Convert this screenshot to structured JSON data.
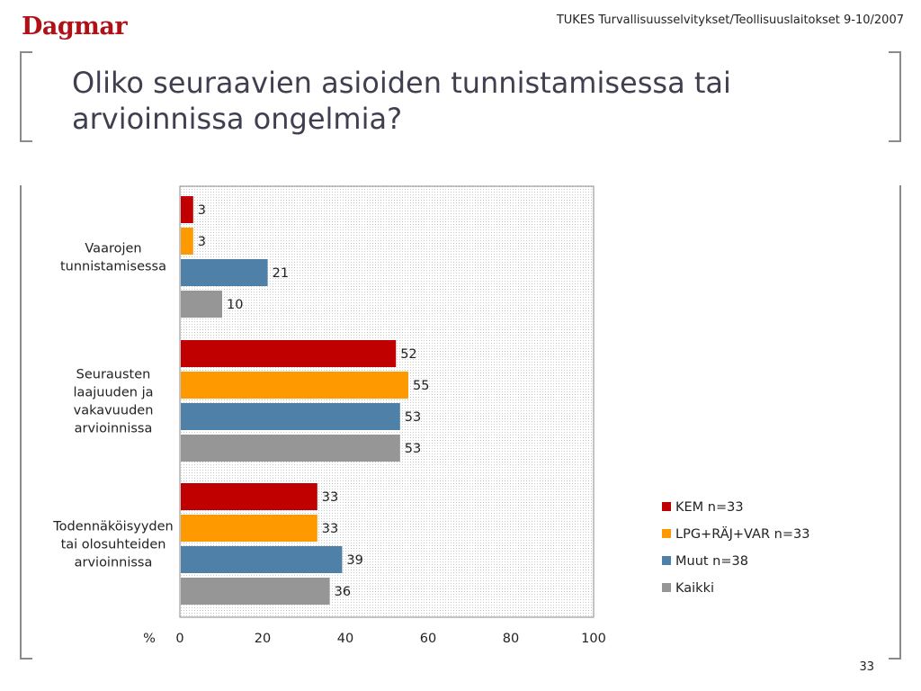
{
  "header": {
    "logo_text": "Dagmar",
    "caption": "TUKES Turvallisuusselvitykset/Teollisuuslaitokset 9-10/2007"
  },
  "title": "Oliko seuraavien asioiden tunnistamisessa tai arvioinnissa ongelmia?",
  "page_number": "33",
  "colors": {
    "brand": "#b01117",
    "series": [
      "#c00000",
      "#ff9900",
      "#4f81a8",
      "#969696"
    ]
  },
  "chart_data": {
    "type": "bar",
    "orientation": "horizontal",
    "categories": [
      [
        "Vaarojen",
        "tunnistamisessa"
      ],
      [
        "Seurausten",
        "laajuuden ja",
        "vakavuuden",
        "arvioinnissa"
      ],
      [
        "Todennäköisyyden",
        "tai olosuhteiden",
        "arvioinnissa"
      ]
    ],
    "series": [
      {
        "name": "KEM n=33",
        "values": [
          3,
          52,
          33
        ]
      },
      {
        "name": "LPG+RÄJ+VAR n=33",
        "values": [
          3,
          55,
          33
        ]
      },
      {
        "name": "Muut n=38",
        "values": [
          21,
          53,
          39
        ]
      },
      {
        "name": "Kaikki",
        "values": [
          10,
          53,
          36
        ]
      }
    ],
    "x_unit_label": "%",
    "xlim": [
      0,
      100
    ],
    "xticks": [
      "0",
      "20",
      "40",
      "60",
      "80",
      "100"
    ],
    "grid": false,
    "legend_position": "right"
  }
}
